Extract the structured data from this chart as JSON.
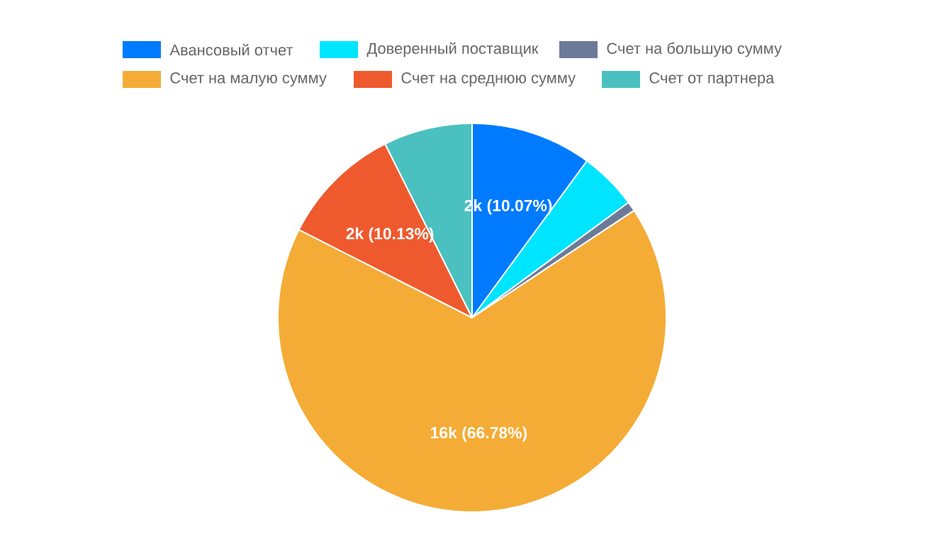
{
  "chart_data": {
    "type": "pie",
    "categories": [
      "Авансовый отчет",
      "Доверенный поставщик",
      "Счет на большую сумму",
      "Счет на малую сумму",
      "Счет на среднюю сумму",
      "Счет от партнера"
    ],
    "values": [
      10.07,
      4.83,
      0.8,
      66.78,
      10.13,
      7.39
    ],
    "colors": [
      "#007bff",
      "#00e5ff",
      "#6c7a99",
      "#f4ac36",
      "#ee5a2e",
      "#4bc0c0"
    ],
    "value_labels": [
      "2k (10.07%)",
      null,
      null,
      "16k (66.78%)",
      "2k (10.13%)",
      null
    ],
    "legend": "top"
  }
}
